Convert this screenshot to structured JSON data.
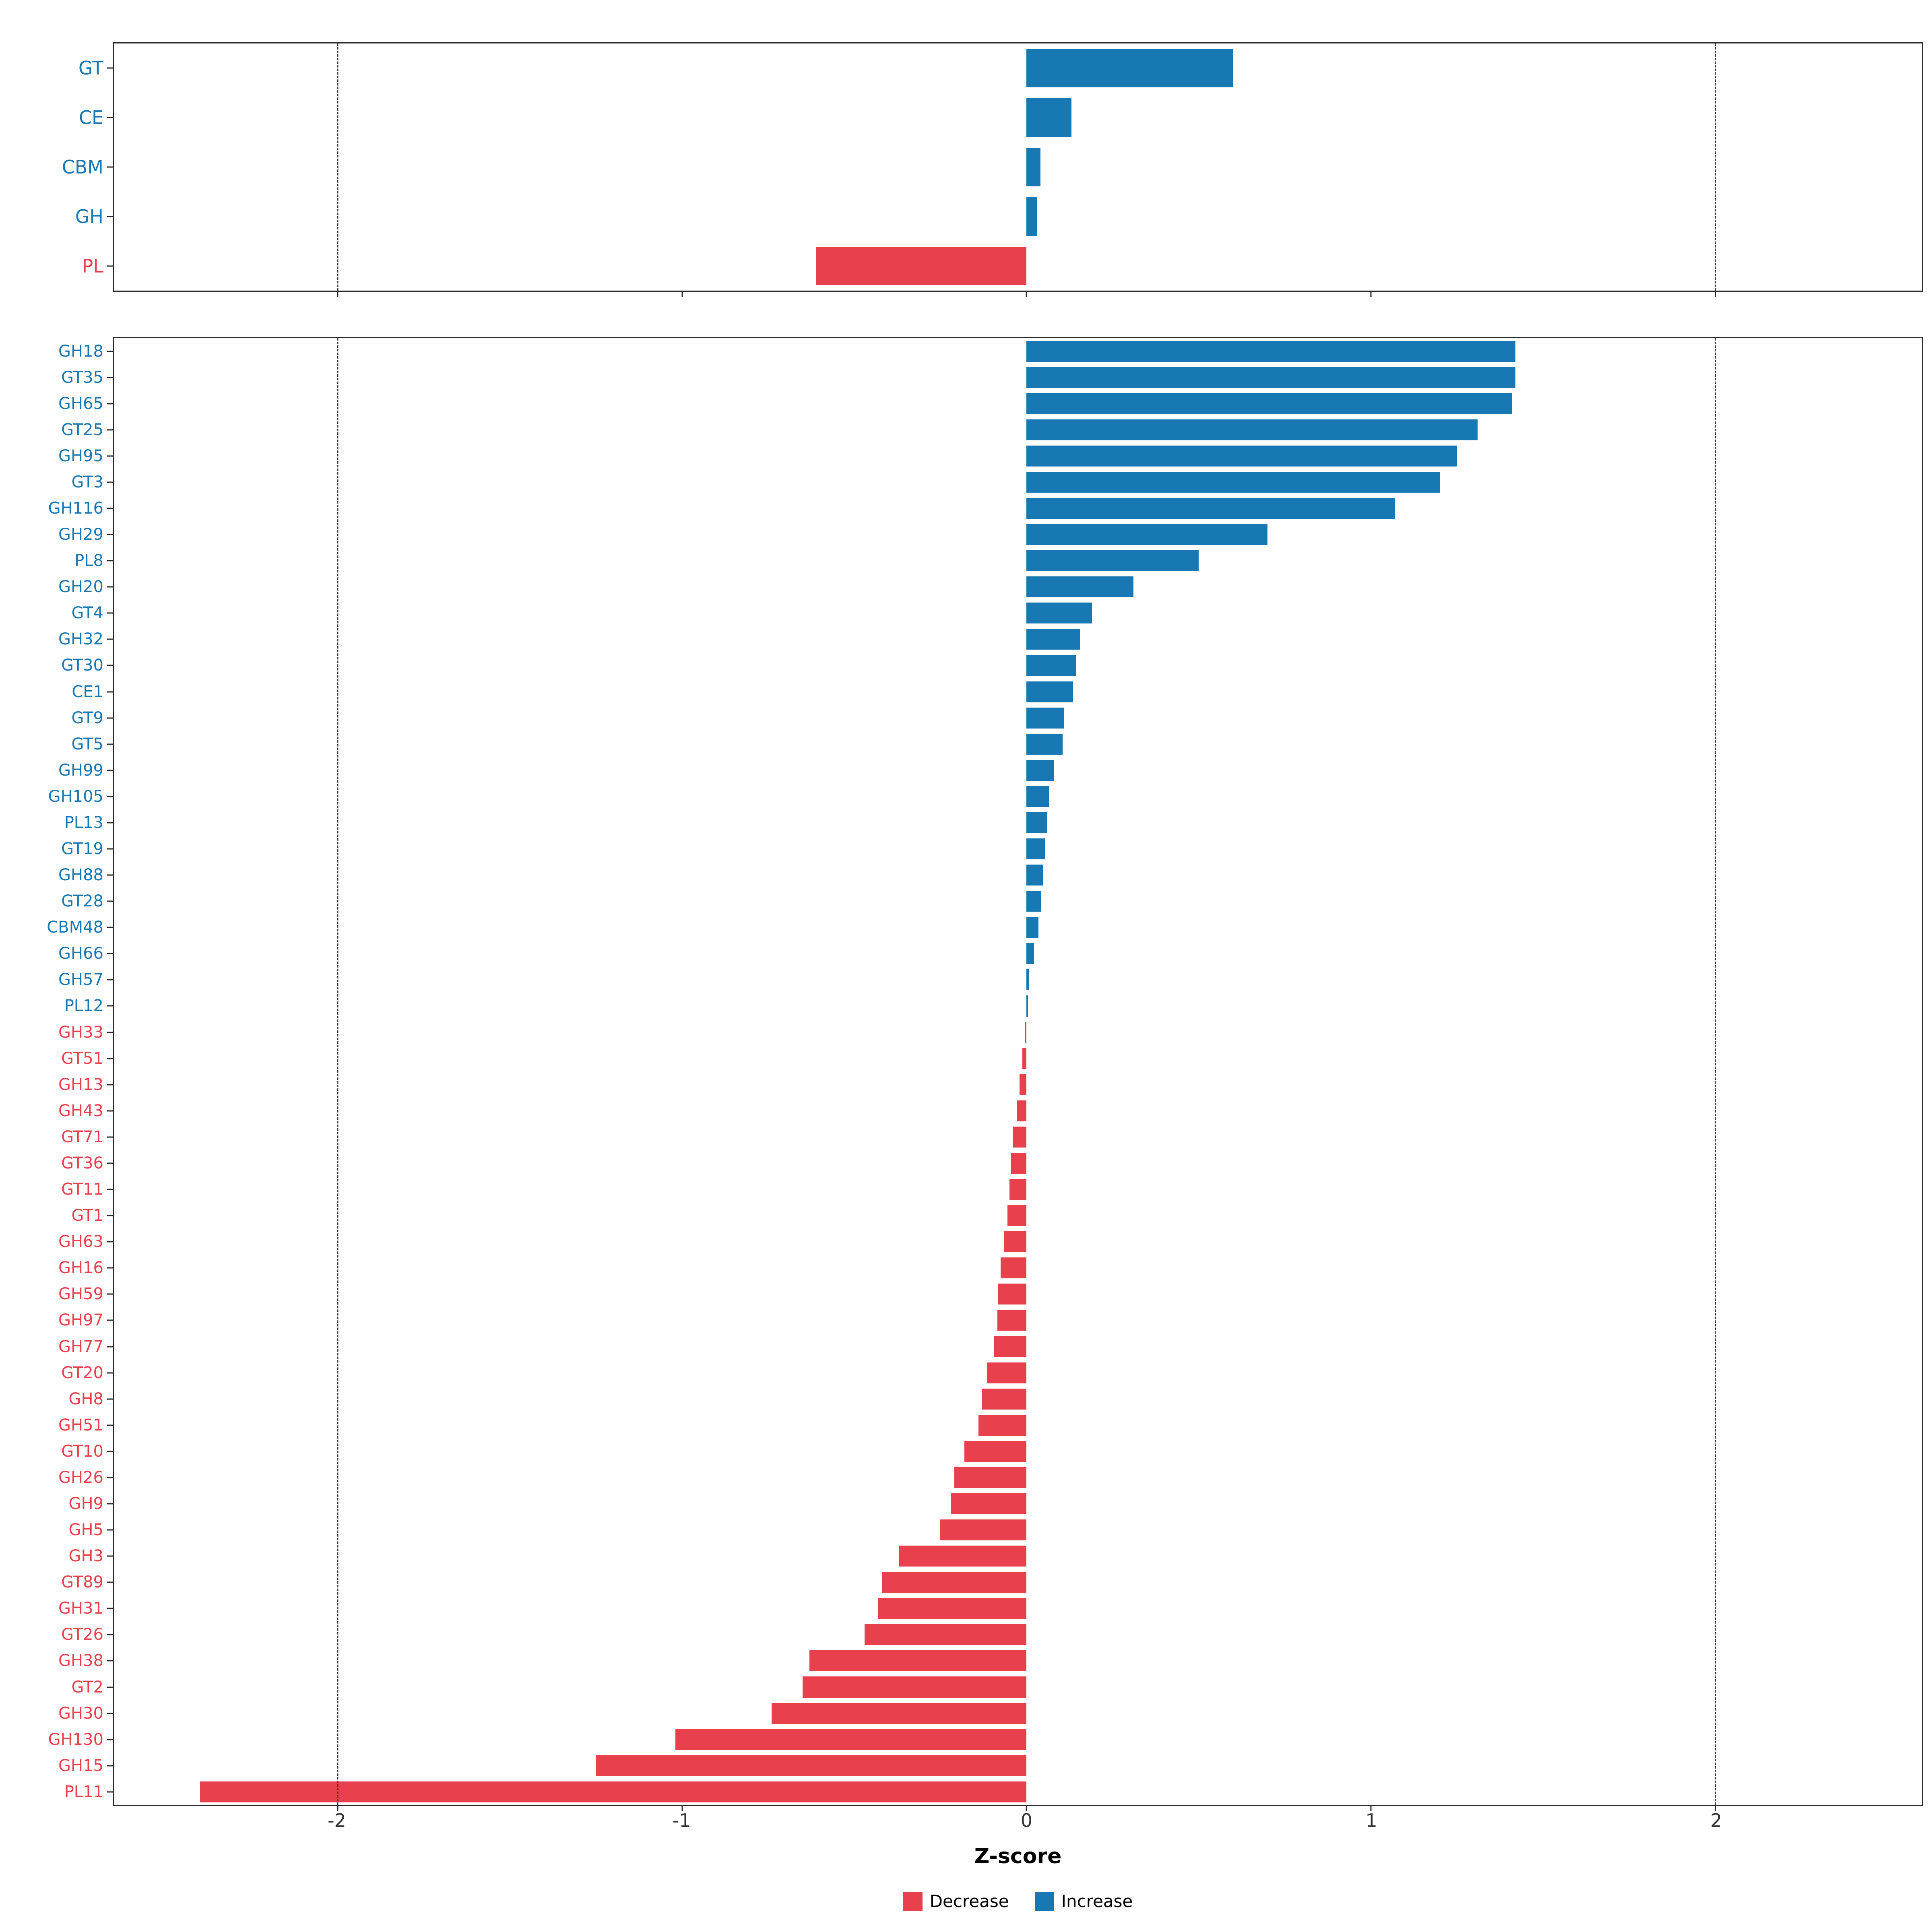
{
  "chart_data": {
    "type": "bar",
    "orientation": "horizontal",
    "title": "",
    "xlabel": "Z-score",
    "xlim": [
      -2.65,
      2.6
    ],
    "x_ticks": [
      {
        "v": -2,
        "label": "-2"
      },
      {
        "v": -1,
        "label": "-1"
      },
      {
        "v": 0,
        "label": "0"
      },
      {
        "v": 1,
        "label": "1"
      },
      {
        "v": 2,
        "label": "2"
      }
    ],
    "reference_lines": [
      -2,
      2
    ],
    "grid": "off",
    "legend_position": "bottom",
    "colors": {
      "increase": "#1878B4",
      "decrease": "#E8414D",
      "axis": "#2b2b2b"
    },
    "legend": [
      {
        "key": "decrease",
        "label": "Decrease"
      },
      {
        "key": "increase",
        "label": "Increase"
      }
    ],
    "panels": [
      {
        "name": "family-summary",
        "rows": [
          {
            "label": "GT",
            "value": 0.6
          },
          {
            "label": "CE",
            "value": 0.13
          },
          {
            "label": "CBM",
            "value": 0.04
          },
          {
            "label": "GH",
            "value": 0.03
          },
          {
            "label": "PL",
            "value": -0.61
          }
        ]
      },
      {
        "name": "family-detail",
        "rows": [
          {
            "label": "GH18",
            "value": 1.42
          },
          {
            "label": "GT35",
            "value": 1.42
          },
          {
            "label": "GH65",
            "value": 1.41
          },
          {
            "label": "GT25",
            "value": 1.31
          },
          {
            "label": "GH95",
            "value": 1.25
          },
          {
            "label": "GT3",
            "value": 1.2
          },
          {
            "label": "GH116",
            "value": 1.07
          },
          {
            "label": "GH29",
            "value": 0.7
          },
          {
            "label": "PL8",
            "value": 0.5
          },
          {
            "label": "GH20",
            "value": 0.31
          },
          {
            "label": "GT4",
            "value": 0.19
          },
          {
            "label": "GH32",
            "value": 0.155
          },
          {
            "label": "GT30",
            "value": 0.145
          },
          {
            "label": "CE1",
            "value": 0.135
          },
          {
            "label": "GT9",
            "value": 0.11
          },
          {
            "label": "GT5",
            "value": 0.105
          },
          {
            "label": "GH99",
            "value": 0.08
          },
          {
            "label": "GH105",
            "value": 0.065
          },
          {
            "label": "PL13",
            "value": 0.06
          },
          {
            "label": "GT19",
            "value": 0.055
          },
          {
            "label": "GH88",
            "value": 0.048
          },
          {
            "label": "GT28",
            "value": 0.042
          },
          {
            "label": "CBM48",
            "value": 0.035
          },
          {
            "label": "GH66",
            "value": 0.022
          },
          {
            "label": "GH57",
            "value": 0.008
          },
          {
            "label": "PL12",
            "value": 0.004
          },
          {
            "label": "GH33",
            "value": -0.005
          },
          {
            "label": "GT51",
            "value": -0.012
          },
          {
            "label": "GH13",
            "value": -0.02
          },
          {
            "label": "GH43",
            "value": -0.027
          },
          {
            "label": "GT71",
            "value": -0.04
          },
          {
            "label": "GT36",
            "value": -0.045
          },
          {
            "label": "GT11",
            "value": -0.05
          },
          {
            "label": "GT1",
            "value": -0.055
          },
          {
            "label": "GH63",
            "value": -0.065
          },
          {
            "label": "GH16",
            "value": -0.075
          },
          {
            "label": "GH59",
            "value": -0.082
          },
          {
            "label": "GH97",
            "value": -0.085
          },
          {
            "label": "GH77",
            "value": -0.095
          },
          {
            "label": "GT20",
            "value": -0.115
          },
          {
            "label": "GH8",
            "value": -0.13
          },
          {
            "label": "GH51",
            "value": -0.14
          },
          {
            "label": "GT10",
            "value": -0.18
          },
          {
            "label": "GH26",
            "value": -0.21
          },
          {
            "label": "GH9",
            "value": -0.22
          },
          {
            "label": "GH5",
            "value": -0.25
          },
          {
            "label": "GH3",
            "value": -0.37
          },
          {
            "label": "GT89",
            "value": -0.42
          },
          {
            "label": "GH31",
            "value": -0.43
          },
          {
            "label": "GT26",
            "value": -0.47
          },
          {
            "label": "GH38",
            "value": -0.63
          },
          {
            "label": "GT2",
            "value": -0.65
          },
          {
            "label": "GH30",
            "value": -0.74
          },
          {
            "label": "GH130",
            "value": -1.02
          },
          {
            "label": "GH15",
            "value": -1.25
          },
          {
            "label": "PL11",
            "value": -2.4
          }
        ]
      }
    ]
  }
}
